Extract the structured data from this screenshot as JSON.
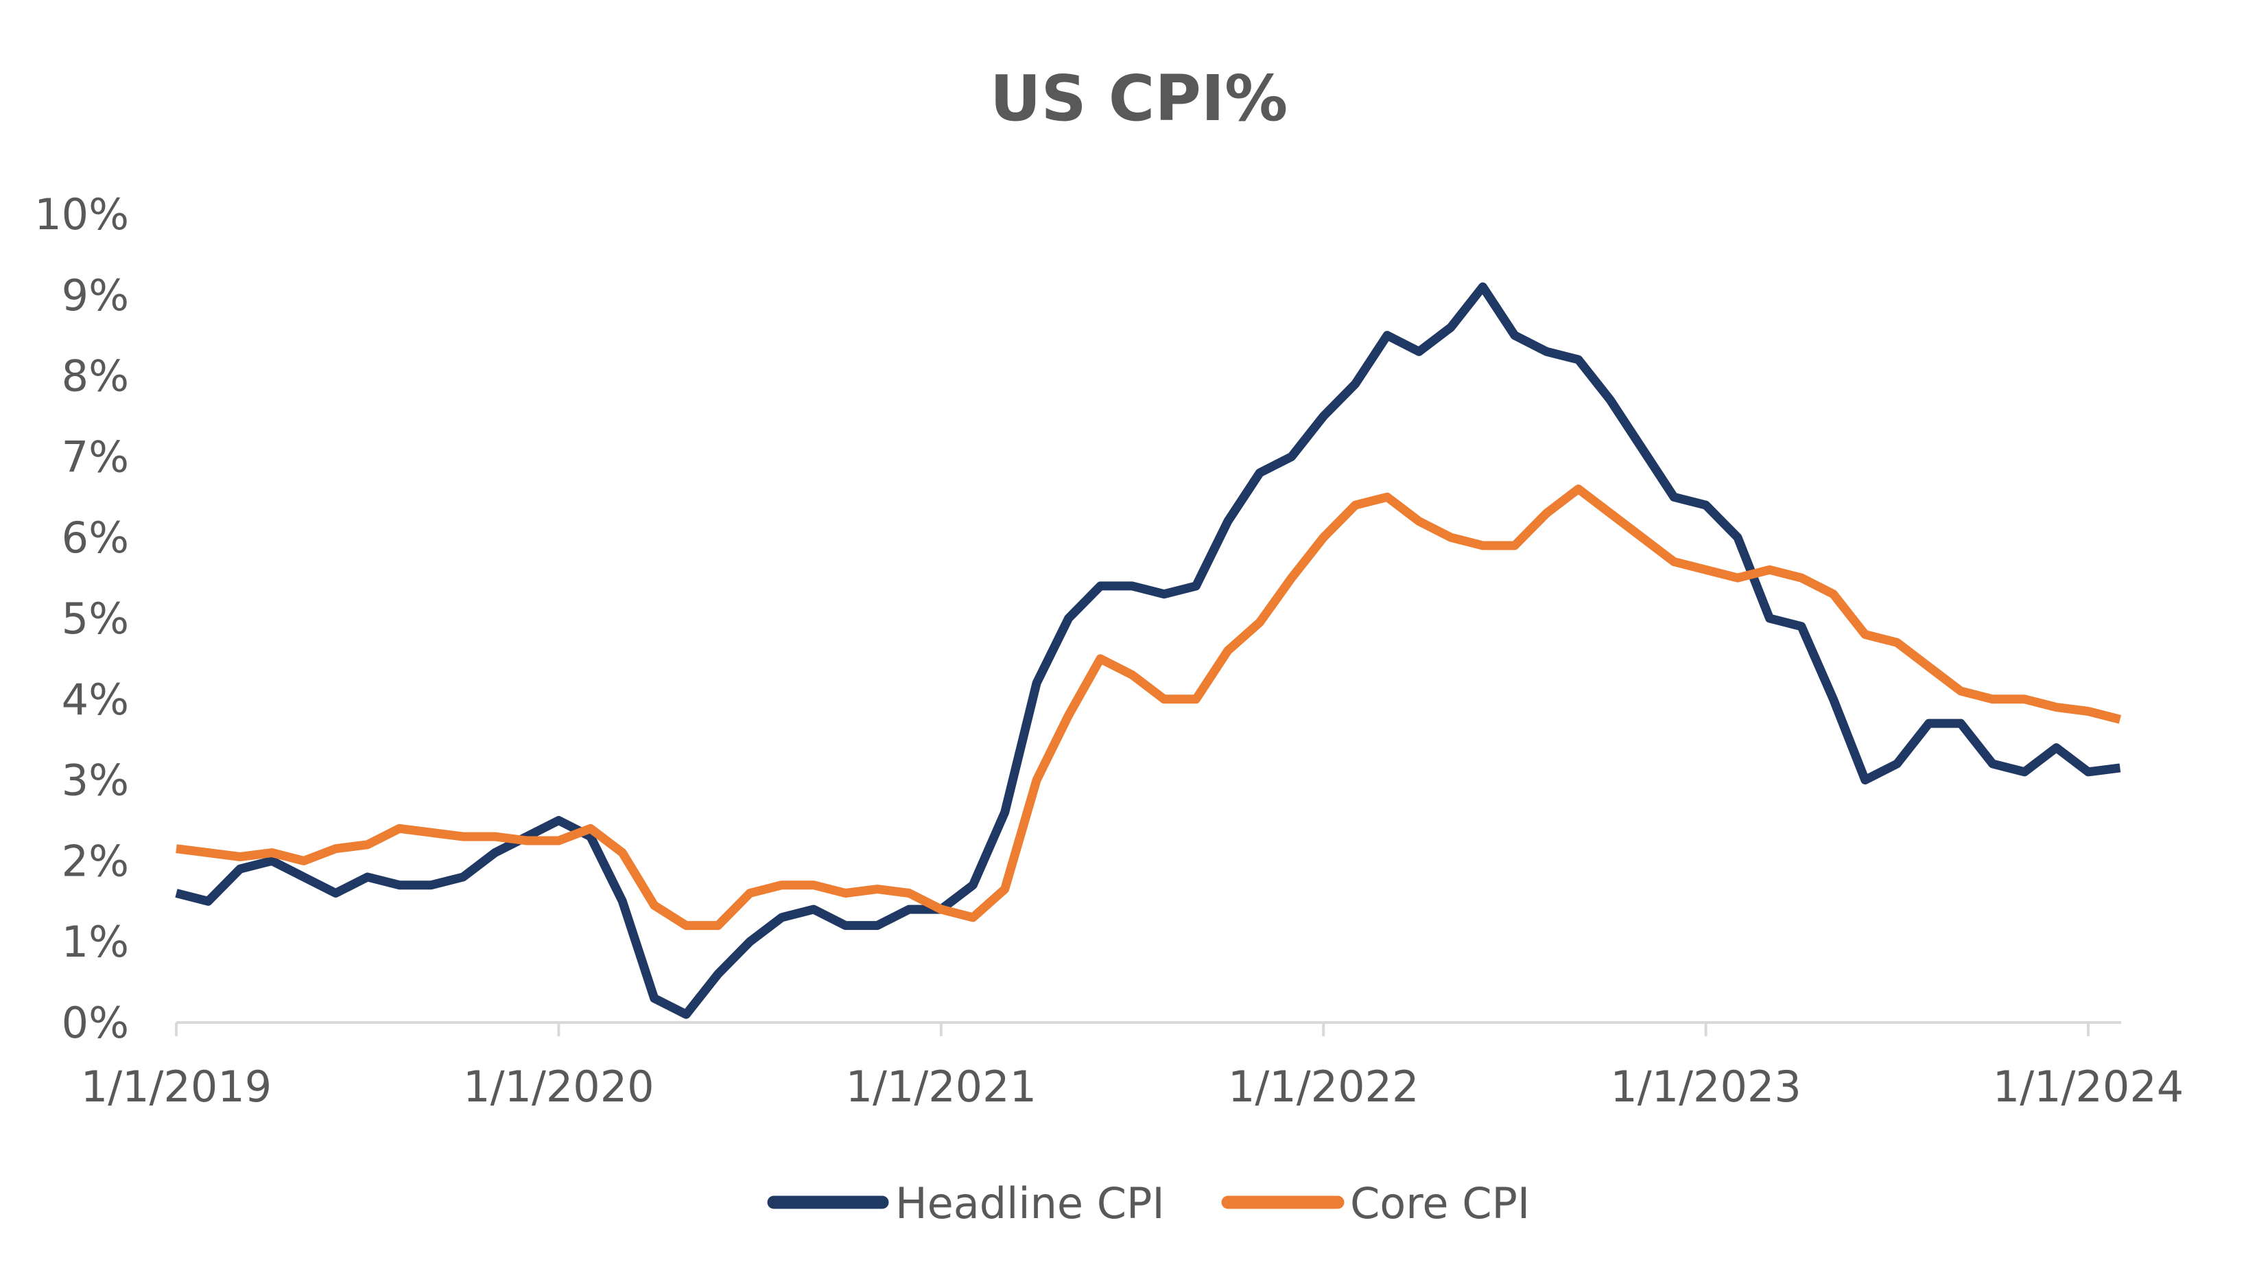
{
  "chart_data": {
    "type": "line",
    "title": "US CPI%",
    "xlabel": "",
    "ylabel": "",
    "ylim": [
      0,
      10
    ],
    "yticks": [
      "0%",
      "1%",
      "2%",
      "3%",
      "4%",
      "5%",
      "6%",
      "7%",
      "8%",
      "9%",
      "10%"
    ],
    "xticks": [
      "1/1/2019",
      "1/1/2020",
      "1/1/2021",
      "1/1/2022",
      "1/1/2023",
      "1/1/2024"
    ],
    "x_start": "2019-01",
    "x_end": "2024-02",
    "x_frequency": "monthly",
    "grid": false,
    "legend": "bottom",
    "series": [
      {
        "name": "Headline CPI",
        "color": "#1F3864",
        "values": [
          1.6,
          1.5,
          1.9,
          2.0,
          1.8,
          1.6,
          1.8,
          1.7,
          1.7,
          1.8,
          2.1,
          2.3,
          2.5,
          2.3,
          1.5,
          0.3,
          0.1,
          0.6,
          1.0,
          1.3,
          1.4,
          1.2,
          1.2,
          1.4,
          1.4,
          1.7,
          2.6,
          4.2,
          5.0,
          5.4,
          5.4,
          5.3,
          5.4,
          6.2,
          6.8,
          7.0,
          7.5,
          7.9,
          8.5,
          8.3,
          8.6,
          9.1,
          8.5,
          8.3,
          8.2,
          7.7,
          7.1,
          6.5,
          6.4,
          6.0,
          5.0,
          4.9,
          4.0,
          3.0,
          3.2,
          3.7,
          3.7,
          3.2,
          3.1,
          3.4,
          3.1,
          3.15
        ]
      },
      {
        "name": "Core CPI",
        "color": "#ED7D31",
        "values": [
          2.15,
          2.1,
          2.05,
          2.1,
          2.0,
          2.15,
          2.2,
          2.4,
          2.35,
          2.3,
          2.3,
          2.25,
          2.25,
          2.4,
          2.1,
          1.45,
          1.2,
          1.2,
          1.6,
          1.7,
          1.7,
          1.6,
          1.65,
          1.6,
          1.4,
          1.3,
          1.65,
          3.0,
          3.8,
          4.5,
          4.3,
          4.0,
          4.0,
          4.6,
          4.95,
          5.5,
          6.0,
          6.4,
          6.5,
          6.2,
          6.0,
          5.9,
          5.9,
          6.3,
          6.6,
          6.3,
          6.0,
          5.7,
          5.6,
          5.5,
          5.6,
          5.5,
          5.3,
          4.8,
          4.7,
          4.4,
          4.1,
          4.0,
          4.0,
          3.9,
          3.85,
          3.75
        ]
      }
    ]
  }
}
